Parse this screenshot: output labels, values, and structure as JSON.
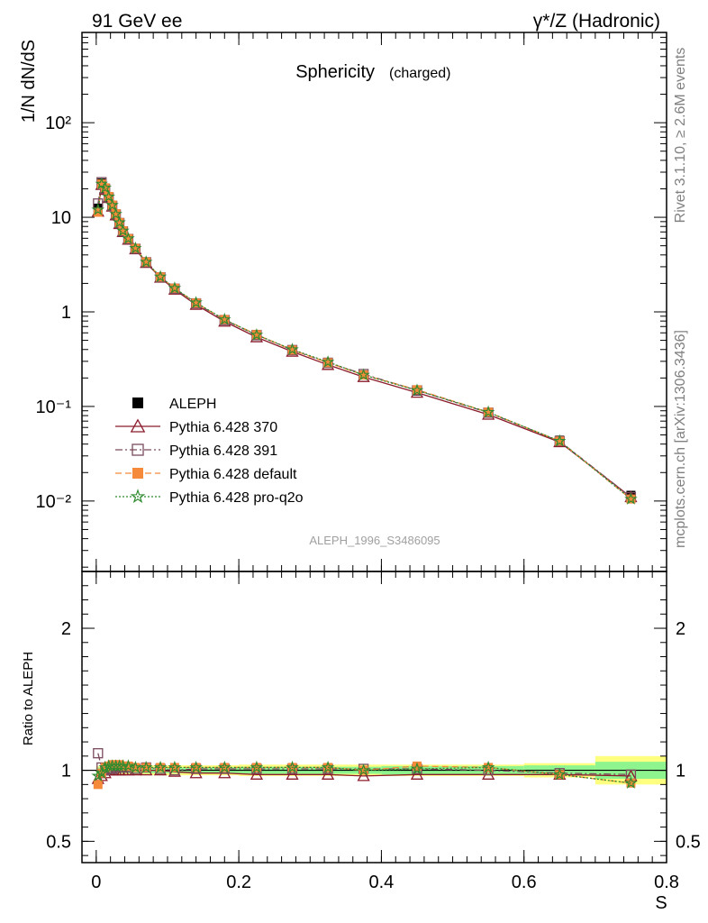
{
  "header": {
    "left": "91 GeV ee",
    "right": "γ*/Z (Hadronic)",
    "side_top": "Rivet 3.1.10, ≥ 2.6M events",
    "side_bottom": "mcplots.cern.ch [arXiv:1306.3436]"
  },
  "chart_data": [
    {
      "type": "line",
      "title": "Sphericity",
      "subtitle": "(charged)",
      "ylabel": "1/N dN/dS",
      "yscale": "log",
      "ylim": [
        0.0018,
        900
      ],
      "xlim": [
        -0.02,
        0.8
      ],
      "y_ticks": [
        {
          "v": 0.01,
          "label": "10⁻²"
        },
        {
          "v": 0.1,
          "label": "10⁻¹"
        },
        {
          "v": 1,
          "label": "1"
        },
        {
          "v": 10,
          "label": "10"
        },
        {
          "v": 100,
          "label": "10²"
        }
      ],
      "watermark": "ALEPH_1996_S3486095",
      "x": [
        0.0025,
        0.0075,
        0.0125,
        0.0175,
        0.0225,
        0.0275,
        0.0325,
        0.0375,
        0.045,
        0.055,
        0.07,
        0.09,
        0.11,
        0.14,
        0.18,
        0.225,
        0.275,
        0.325,
        0.375,
        0.45,
        0.55,
        0.65,
        0.75
      ],
      "legend": {
        "position": "center-left"
      },
      "series": [
        {
          "name": "ALEPH",
          "color": "#000000",
          "marker": "filled-square",
          "style": "points",
          "values": [
            12.5,
            23,
            20,
            16,
            13,
            10.5,
            8.5,
            7,
            5.8,
            4.6,
            3.3,
            2.3,
            1.75,
            1.22,
            0.81,
            0.56,
            0.39,
            0.285,
            0.215,
            0.145,
            0.085,
            0.044,
            0.0115
          ]
        },
        {
          "name": "Pythia 6.428 370",
          "color": "#8b1a2a",
          "marker": "open-triangle",
          "style": "solid",
          "values": [
            11.5,
            22,
            19.5,
            16,
            13,
            10.5,
            8.5,
            7,
            5.8,
            4.6,
            3.3,
            2.3,
            1.72,
            1.19,
            0.79,
            0.54,
            0.38,
            0.275,
            0.205,
            0.14,
            0.082,
            0.042,
            0.011
          ]
        },
        {
          "name": "Pythia 6.428 391",
          "color": "#7a4a5e",
          "marker": "open-square",
          "style": "dashdot",
          "values": [
            14,
            23.5,
            20,
            16.2,
            13.2,
            10.7,
            8.7,
            7.1,
            5.9,
            4.65,
            3.35,
            2.32,
            1.76,
            1.23,
            0.82,
            0.57,
            0.395,
            0.29,
            0.22,
            0.148,
            0.086,
            0.043,
            0.011
          ]
        },
        {
          "name": "Pythia 6.428 default",
          "color": "#f58a3a",
          "marker": "filled-square",
          "style": "dashed",
          "values": [
            11.3,
            22.5,
            20.5,
            16.6,
            13.5,
            10.9,
            8.8,
            7.2,
            5.95,
            4.7,
            3.37,
            2.34,
            1.78,
            1.24,
            0.83,
            0.575,
            0.395,
            0.29,
            0.215,
            0.15,
            0.087,
            0.043,
            0.0105
          ]
        },
        {
          "name": "Pythia 6.428 pro-q2o",
          "color": "#2e8b2e",
          "marker": "star",
          "style": "dotted",
          "values": [
            12,
            22.5,
            20.5,
            16.5,
            13.4,
            10.8,
            8.8,
            7.2,
            5.95,
            4.7,
            3.37,
            2.35,
            1.78,
            1.25,
            0.83,
            0.57,
            0.4,
            0.295,
            0.215,
            0.148,
            0.087,
            0.043,
            0.0105
          ]
        }
      ]
    },
    {
      "type": "line",
      "ylabel": "Ratio to ALEPH",
      "xlabel": "S",
      "ylim": [
        0.35,
        2.4
      ],
      "xlim": [
        -0.02,
        0.8
      ],
      "y_ticks": [
        {
          "v": 0.5,
          "label": "0.5"
        },
        {
          "v": 1,
          "label": "1"
        },
        {
          "v": 2,
          "label": "2"
        }
      ],
      "x_ticks": [
        {
          "v": 0,
          "label": "0"
        },
        {
          "v": 0.2,
          "label": "0.2"
        },
        {
          "v": 0.4,
          "label": "0.4"
        },
        {
          "v": 0.6,
          "label": "0.6"
        },
        {
          "v": 0.8,
          "label": "0.8"
        }
      ],
      "bands": {
        "yellow_color": "#ffff80",
        "green_color": "#8ef58e",
        "bins": [
          {
            "x0": 0.0,
            "x1": 0.05,
            "y": 0.03,
            "g": 0.02
          },
          {
            "x0": 0.05,
            "x1": 0.2,
            "y": 0.035,
            "g": 0.02
          },
          {
            "x0": 0.2,
            "x1": 0.4,
            "y": 0.04,
            "g": 0.025
          },
          {
            "x0": 0.4,
            "x1": 0.6,
            "y": 0.04,
            "g": 0.03
          },
          {
            "x0": 0.6,
            "x1": 0.7,
            "y": 0.05,
            "g": 0.035
          },
          {
            "x0": 0.7,
            "x1": 0.8,
            "y": 0.1,
            "g": 0.06
          }
        ]
      },
      "series": [
        {
          "name": "Pythia 6.428 370",
          "values": [
            0.94,
            0.96,
            0.98,
            1.0,
            1.0,
            1.0,
            1.0,
            1.0,
            1.0,
            1.0,
            1.0,
            1.0,
            0.99,
            0.98,
            0.98,
            0.97,
            0.97,
            0.97,
            0.96,
            0.97,
            0.97,
            0.97,
            0.96
          ]
        },
        {
          "name": "Pythia 6.428 391",
          "values": [
            1.12,
            1.02,
            1.0,
            1.01,
            1.01,
            1.02,
            1.02,
            1.02,
            1.02,
            1.01,
            1.02,
            1.01,
            1.0,
            1.01,
            1.01,
            1.01,
            1.01,
            1.01,
            1.01,
            1.01,
            1.0,
            0.98,
            0.97
          ]
        },
        {
          "name": "Pythia 6.428 default",
          "values": [
            0.9,
            0.98,
            1.02,
            1.03,
            1.04,
            1.04,
            1.04,
            1.03,
            1.03,
            1.02,
            1.02,
            1.02,
            1.02,
            1.02,
            1.02,
            1.02,
            1.02,
            1.02,
            1.0,
            1.03,
            1.02,
            0.97,
            0.91
          ]
        },
        {
          "name": "Pythia 6.428 pro-q2o",
          "values": [
            0.96,
            0.98,
            1.02,
            1.03,
            1.03,
            1.03,
            1.03,
            1.03,
            1.03,
            1.02,
            1.02,
            1.02,
            1.02,
            1.02,
            1.02,
            1.02,
            1.02,
            1.02,
            1.0,
            1.01,
            1.02,
            0.97,
            0.91
          ]
        }
      ]
    }
  ]
}
